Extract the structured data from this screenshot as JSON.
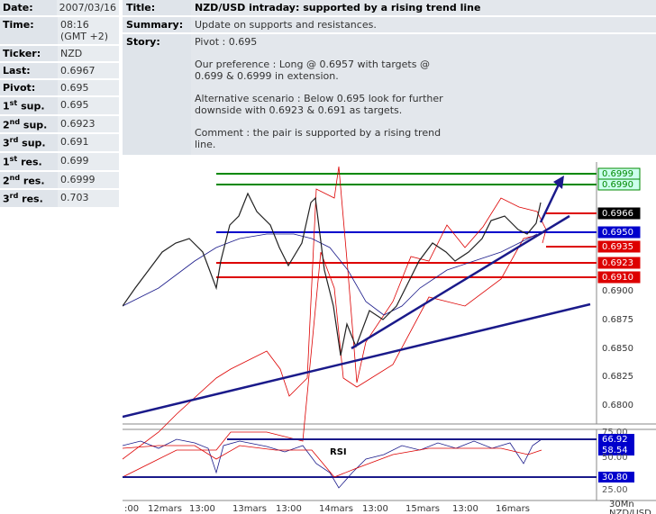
{
  "info": {
    "rows": [
      {
        "label": {
          "num": "",
          "ord": "",
          "rest": "Date:"
        },
        "value": [
          "2007/03/16"
        ]
      },
      {
        "label": {
          "num": "",
          "ord": "",
          "rest": "Time:"
        },
        "value": [
          "08:16",
          "(GMT +2)"
        ]
      },
      {
        "label": {
          "num": "",
          "ord": "",
          "rest": "Ticker:"
        },
        "value": [
          "NZD"
        ]
      },
      {
        "label": {
          "num": "",
          "ord": "",
          "rest": "Last:"
        },
        "value": [
          "0.6967"
        ]
      },
      {
        "label": {
          "num": "",
          "ord": "",
          "rest": "Pivot:"
        },
        "value": [
          "0.695"
        ]
      },
      {
        "label": {
          "num": "1",
          "ord": "st",
          "rest": " sup."
        },
        "value": [
          "0.695"
        ]
      },
      {
        "label": {
          "num": "2",
          "ord": "nd",
          "rest": " sup."
        },
        "value": [
          "0.6923"
        ]
      },
      {
        "label": {
          "num": "3",
          "ord": "rd",
          "rest": " sup."
        },
        "value": [
          "0.691"
        ]
      },
      {
        "label": {
          "num": "1",
          "ord": "st",
          "rest": " res."
        },
        "value": [
          "0.699"
        ]
      },
      {
        "label": {
          "num": "2",
          "ord": "nd",
          "rest": " res."
        },
        "value": [
          "0.6999"
        ]
      },
      {
        "label": {
          "num": "3",
          "ord": "rd",
          "rest": " res."
        },
        "value": [
          "0.703"
        ]
      }
    ]
  },
  "article": {
    "title_label": "Title:",
    "title": "NZD/USD intraday: supported by a rising trend line",
    "summary_label": "Summary:",
    "summary": "Update on supports and resistances.",
    "story_label": "Story:",
    "story": [
      "Pivot : 0.695",
      "Our preference : Long @ 0.6957 with targets @ 0.699 & 0.6999 in extension.",
      "Alternative scenario : Below 0.695 look for further downside with 0.6923 & 0.691 as targets.",
      "Comment : the pair is supported by a rising trend line."
    ]
  },
  "chart_image": {
    "level_labels": [
      "0.6999",
      "0.6990",
      "0.6966",
      "0.6950",
      "0.6935",
      "0.6923",
      "0.6910"
    ],
    "axis_labels": [
      "0.6900",
      "0.6875",
      "0.6850",
      "0.6825",
      "0.6800"
    ],
    "rsi_title": "RSI",
    "rsi_labels": [
      "75.00",
      "66.92",
      "58.54",
      "50.00",
      "30.80",
      "25.00"
    ],
    "x_labels": [
      ":00",
      "12mars",
      "13:00",
      "13mars",
      "13:00",
      "14mars",
      "13:00",
      "15mars",
      "13:00",
      "16mars"
    ],
    "timeframe": "30Mn",
    "pair": "NZD/USD"
  }
}
